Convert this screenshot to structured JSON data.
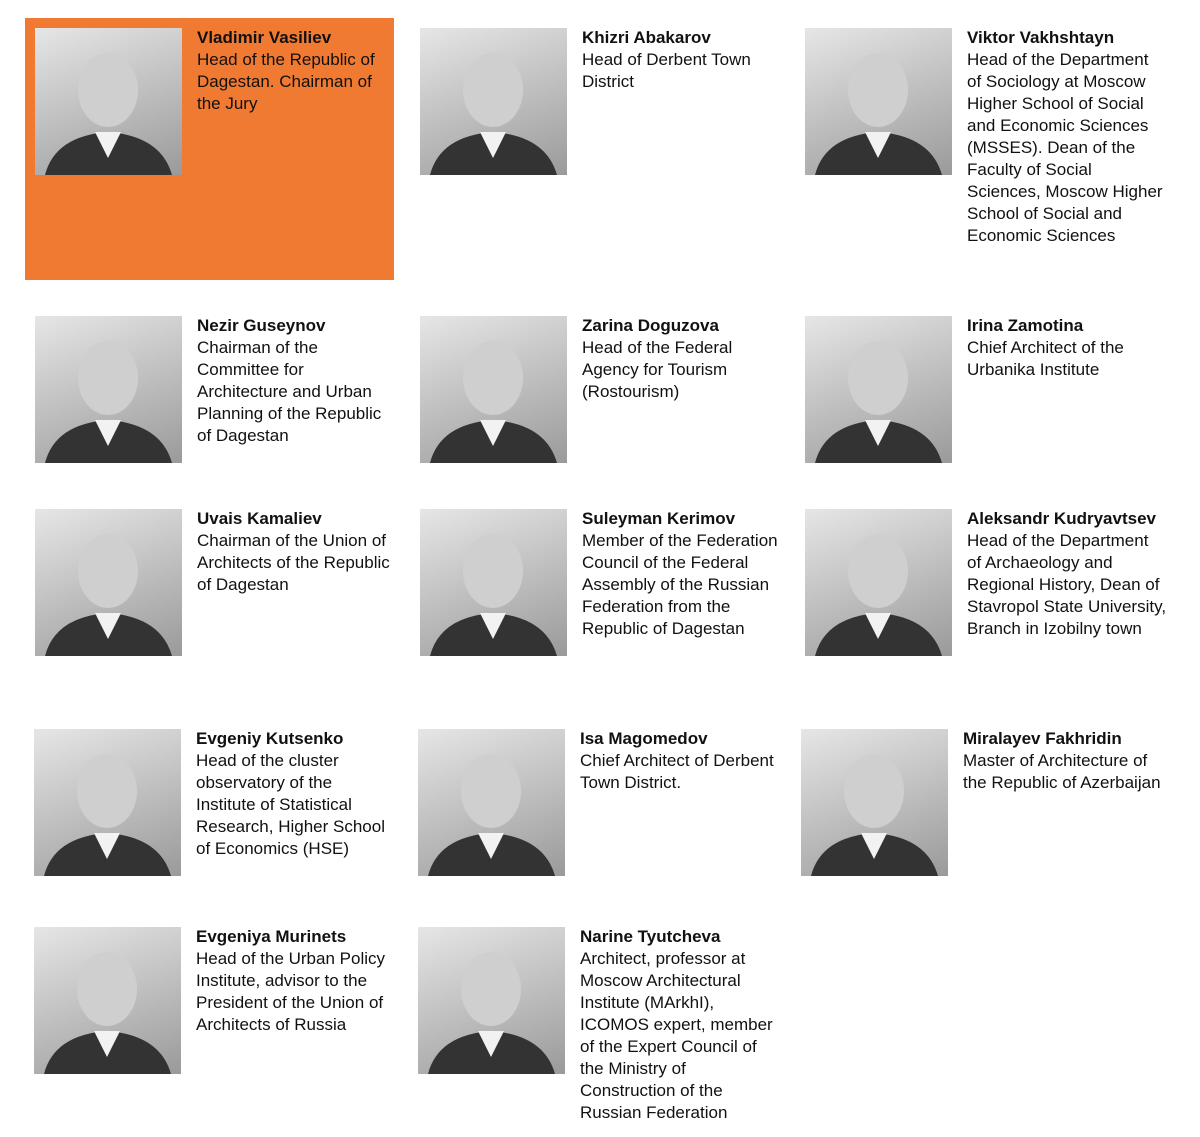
{
  "highlight_color": "#F07A32",
  "members": [
    {
      "name": "Vladimir Vasiliev",
      "role": "Head of the Republic of Dagestan. Chairman of the Jury",
      "highlighted": true
    },
    {
      "name": "Khizri Abakarov",
      "role": "Head of Derbent Town District"
    },
    {
      "name": "Viktor Vakhshtayn",
      "role": "Head of the Department of Sociology at Moscow Higher School of Social and Economic Sciences (MSSES). Dean of the Faculty of Social Sciences, Moscow Higher School of Social and Economic Sciences"
    },
    {
      "name": "Nezir Guseynov",
      "role": "Chairman of the Committee for Architecture and Urban Planning of the Republic of Dagestan"
    },
    {
      "name": "Zarina Doguzova",
      "role": "Head of the Federal Agency for Tourism (Rostourism)"
    },
    {
      "name": "Irina Zamotina",
      "role": "Chief Architect of the Urbanika Institute"
    },
    {
      "name": "Uvais Kamaliev",
      "role": "Chairman of the Union of Architects of the Republic of Dagestan"
    },
    {
      "name": "Suleyman Kerimov",
      "role": "Member of the Federation Council of the Federal Assembly of the Russian Federation from the Republic of Dagestan"
    },
    {
      "name": "Aleksandr Kudryavtsev",
      "role": "Head of the Department of Archaeology and Regional History, Dean of Stavropol State University, Branch in Izobilny town"
    },
    {
      "name": "Evgeniy Kutsenko",
      "role": "Head of the cluster observatory of the Institute of Statistical Research, Higher School of Economics (HSE)"
    },
    {
      "name": "Isa Magomedov",
      "role": "Chief Architect of Derbent Town District."
    },
    {
      "name": "Miralayev Fakhridin",
      "role": "Master of Architecture of the Republic of Azerbaijan"
    },
    {
      "name": "Evgeniya Murinets",
      "role": "Head of the Urban Policy Institute, advisor to the President of the Union of Architects of Russia"
    },
    {
      "name": "Narine Tyutcheva",
      "role": "Architect, professor at Moscow Architectural Institute (MArkhI), ICOMOS expert, member of the Expert Council of the Ministry of Construction of the Russian Federation"
    }
  ]
}
